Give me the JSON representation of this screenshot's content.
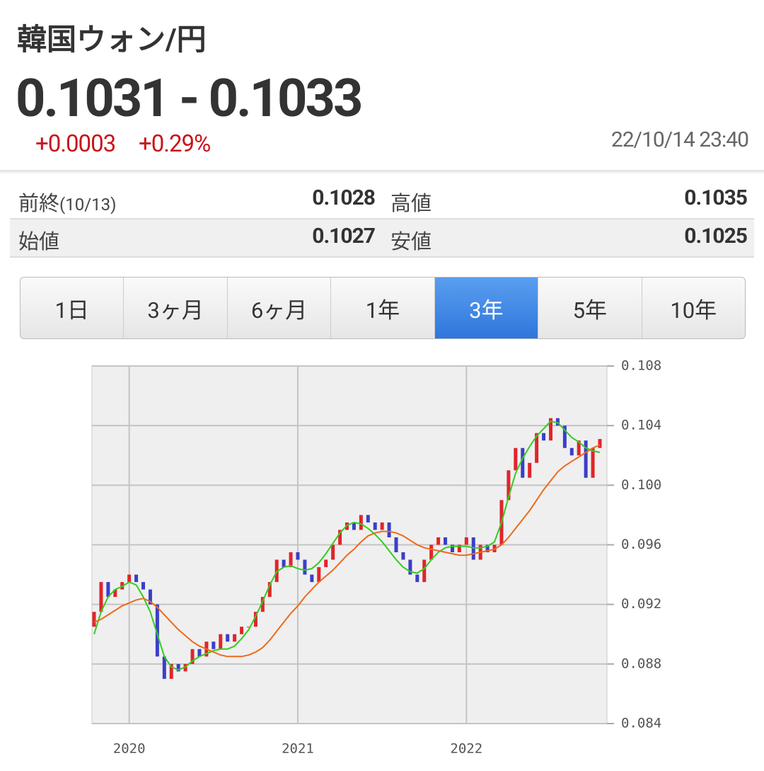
{
  "header": {
    "title": "韓国ウォン/円",
    "price": "0.1031 - 0.1033",
    "change": "+0.0003",
    "change_pct": "+0.29%",
    "timestamp": "22/10/14 23:40"
  },
  "stats": {
    "rows": [
      [
        {
          "label": "前終",
          "note": "(10/13)",
          "value": "0.1028"
        },
        {
          "label": "高値",
          "value": "0.1035"
        }
      ],
      [
        {
          "label": "始値",
          "value": "0.1027"
        },
        {
          "label": "安値",
          "value": "0.1025"
        }
      ]
    ]
  },
  "tabs": {
    "items": [
      "1日",
      "3ヶ月",
      "6ヶ月",
      "1年",
      "3年",
      "5年",
      "10年"
    ],
    "active": 4
  },
  "chart_data": {
    "type": "candlestick",
    "categories": [
      null,
      null,
      null,
      null,
      null,
      "2020",
      null,
      null,
      null,
      null,
      null,
      null,
      null,
      null,
      null,
      null,
      null,
      null,
      null,
      null,
      null,
      null,
      null,
      null,
      null,
      null,
      null,
      null,
      null,
      "2021",
      null,
      null,
      null,
      null,
      null,
      null,
      null,
      null,
      null,
      null,
      null,
      null,
      null,
      null,
      null,
      null,
      null,
      null,
      null,
      null,
      null,
      null,
      null,
      "2022",
      null,
      null,
      null,
      null,
      null,
      null,
      null,
      null,
      null,
      null,
      null,
      null,
      null,
      null,
      null,
      null,
      null,
      null,
      null
    ],
    "open": [
      0.0905,
      0.0915,
      0.0935,
      0.0925,
      0.093,
      0.0935,
      0.094,
      0.0935,
      0.093,
      0.092,
      0.0885,
      0.087,
      0.088,
      0.0875,
      0.088,
      0.089,
      0.0885,
      0.0895,
      0.089,
      0.09,
      0.0895,
      0.09,
      0.0905,
      0.0905,
      0.0915,
      0.0925,
      0.0935,
      0.095,
      0.0945,
      0.0955,
      0.095,
      0.094,
      0.0935,
      0.0945,
      0.095,
      0.096,
      0.097,
      0.0975,
      0.097,
      0.098,
      0.0975,
      0.097,
      0.0975,
      0.0965,
      0.0955,
      0.095,
      0.094,
      0.0935,
      0.095,
      0.096,
      0.0965,
      0.096,
      0.0955,
      0.096,
      0.0965,
      0.095,
      0.096,
      0.0955,
      0.096,
      0.099,
      0.101,
      0.1025,
      0.1005,
      0.1015,
      0.1035,
      0.103,
      0.1045,
      0.104,
      0.1025,
      0.102,
      0.103,
      0.1005,
      0.1025
    ],
    "close": [
      0.0915,
      0.0935,
      0.0925,
      0.093,
      0.0935,
      0.094,
      0.0935,
      0.093,
      0.092,
      0.0885,
      0.087,
      0.088,
      0.0875,
      0.088,
      0.089,
      0.0885,
      0.0895,
      0.089,
      0.09,
      0.0895,
      0.09,
      0.0905,
      0.0905,
      0.0915,
      0.0925,
      0.0935,
      0.095,
      0.0945,
      0.0955,
      0.095,
      0.094,
      0.0935,
      0.0945,
      0.095,
      0.096,
      0.097,
      0.0975,
      0.097,
      0.098,
      0.0975,
      0.097,
      0.0975,
      0.0965,
      0.0955,
      0.095,
      0.094,
      0.0935,
      0.095,
      0.096,
      0.0965,
      0.096,
      0.0955,
      0.096,
      0.0965,
      0.095,
      0.096,
      0.0955,
      0.096,
      0.099,
      0.101,
      0.1025,
      0.1005,
      0.1015,
      0.1035,
      0.103,
      0.1045,
      0.104,
      0.1025,
      0.102,
      0.103,
      0.1005,
      0.1025,
      0.1031
    ],
    "up_color": "#e0252b",
    "down_color": "#3a3fc8",
    "series": [
      {
        "color": "#33cc22",
        "values": [
          0.09,
          0.0915,
          0.0925,
          0.093,
          0.0932,
          0.0935,
          0.0933,
          0.0925,
          0.0915,
          0.09,
          0.0885,
          0.0878,
          0.0876,
          0.0878,
          0.0882,
          0.0885,
          0.0887,
          0.0889,
          0.089,
          0.089,
          0.0892,
          0.0897,
          0.0903,
          0.0912,
          0.0922,
          0.0933,
          0.0942,
          0.0945,
          0.0946,
          0.0944,
          0.0943,
          0.0944,
          0.0948,
          0.0954,
          0.0961,
          0.0968,
          0.0973,
          0.0975,
          0.0974,
          0.0971,
          0.0967,
          0.0962,
          0.0956,
          0.095,
          0.0945,
          0.0942,
          0.0941,
          0.0944,
          0.095,
          0.0955,
          0.0958,
          0.0959,
          0.0959,
          0.0959,
          0.0958,
          0.0958,
          0.0959,
          0.0962,
          0.0975,
          0.0992,
          0.1008,
          0.1018,
          0.1026,
          0.1033,
          0.1038,
          0.1043,
          0.1042,
          0.1037,
          0.1032,
          0.1029,
          0.1025,
          0.1023,
          0.1022
        ]
      },
      {
        "color": "#ee6a1a",
        "values": [
          0.0908,
          0.091,
          0.0913,
          0.0916,
          0.0919,
          0.0921,
          0.0923,
          0.0924,
          0.0922,
          0.0918,
          0.0913,
          0.0908,
          0.0903,
          0.0899,
          0.0895,
          0.0892,
          0.089,
          0.0888,
          0.0886,
          0.0885,
          0.0885,
          0.0885,
          0.0886,
          0.0888,
          0.0891,
          0.0896,
          0.0902,
          0.0908,
          0.0914,
          0.0919,
          0.0925,
          0.093,
          0.0935,
          0.0939,
          0.0943,
          0.0948,
          0.0953,
          0.0957,
          0.0962,
          0.0966,
          0.0968,
          0.0969,
          0.0969,
          0.0968,
          0.0966,
          0.0963,
          0.096,
          0.0958,
          0.0957,
          0.0956,
          0.0955,
          0.0954,
          0.0953,
          0.0953,
          0.0954,
          0.0955,
          0.0956,
          0.0957,
          0.096,
          0.0965,
          0.0971,
          0.0977,
          0.0983,
          0.099,
          0.0997,
          0.1003,
          0.1009,
          0.1013,
          0.1016,
          0.1019,
          0.1022,
          0.1025,
          0.1027
        ]
      }
    ],
    "ylim": [
      0.084,
      0.108
    ],
    "yticks": [
      0.084,
      0.088,
      0.092,
      0.096,
      {
        "value": 0.1,
        "label": "0.100"
      },
      0.104,
      0.108
    ],
    "grid": true
  }
}
